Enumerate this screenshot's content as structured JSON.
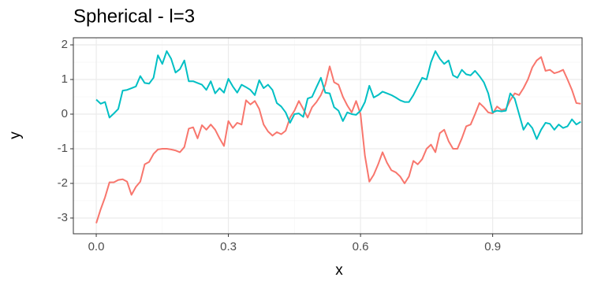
{
  "chart_data": {
    "type": "line",
    "title": "Spherical - l=3",
    "x_label": "x",
    "y_label": "y",
    "x": [
      0,
      0.01,
      0.02,
      0.03,
      0.04,
      0.05,
      0.06,
      0.07,
      0.08,
      0.09,
      0.1,
      0.11,
      0.12,
      0.13,
      0.14,
      0.15,
      0.16,
      0.17,
      0.18,
      0.19,
      0.2,
      0.21,
      0.22,
      0.23,
      0.24,
      0.25,
      0.26,
      0.27,
      0.28,
      0.29,
      0.3,
      0.31,
      0.32,
      0.33,
      0.34,
      0.35,
      0.36,
      0.37,
      0.38,
      0.39,
      0.4,
      0.41,
      0.42,
      0.43,
      0.44,
      0.45,
      0.46,
      0.47,
      0.48,
      0.49,
      0.5,
      0.51,
      0.52,
      0.53,
      0.54,
      0.55,
      0.56,
      0.57,
      0.58,
      0.59,
      0.6,
      0.61,
      0.62,
      0.63,
      0.64,
      0.65,
      0.66,
      0.67,
      0.68,
      0.69,
      0.7,
      0.71,
      0.72,
      0.73,
      0.74,
      0.75,
      0.76,
      0.77,
      0.78,
      0.79,
      0.8,
      0.81,
      0.82,
      0.83,
      0.84,
      0.85,
      0.86,
      0.87,
      0.88,
      0.89,
      0.9,
      0.91,
      0.92,
      0.93,
      0.94,
      0.95,
      0.96,
      0.97,
      0.98,
      0.99,
      1.0,
      1.01,
      1.02,
      1.03,
      1.04,
      1.05,
      1.06,
      1.07,
      1.08,
      1.09,
      1.1
    ],
    "series": [
      {
        "color": "#F8766D",
        "values": [
          -3.15,
          -2.75,
          -2.4,
          -1.97,
          -1.97,
          -1.9,
          -1.88,
          -1.95,
          -2.33,
          -2.1,
          -1.95,
          -1.45,
          -1.38,
          -1.15,
          -1.02,
          -1.0,
          -1.0,
          -1.02,
          -1.05,
          -1.1,
          -0.95,
          -0.42,
          -0.38,
          -0.7,
          -0.32,
          -0.45,
          -0.3,
          -0.45,
          -0.7,
          -0.92,
          -0.2,
          -0.4,
          -0.25,
          -0.3,
          0.4,
          0.28,
          0.38,
          0.15,
          -0.3,
          -0.5,
          -0.62,
          -0.52,
          -0.58,
          -0.48,
          -0.1,
          0.1,
          0.38,
          0.15,
          -0.1,
          0.2,
          0.35,
          0.55,
          0.85,
          1.38,
          0.92,
          0.85,
          0.5,
          0.25,
          0.05,
          0.38,
          0.0,
          -1.2,
          -1.95,
          -1.75,
          -1.45,
          -1.1,
          -1.4,
          -1.62,
          -1.68,
          -1.8,
          -2.0,
          -1.8,
          -1.35,
          -1.45,
          -1.3,
          -1.0,
          -0.88,
          -1.1,
          -0.55,
          -0.45,
          -0.78,
          -1.0,
          -1.0,
          -0.7,
          -0.35,
          -0.3,
          0.0,
          0.32,
          0.2,
          0.05,
          0.02,
          0.22,
          0.12,
          0.15,
          0.4,
          0.6,
          0.55,
          0.75,
          1.0,
          1.35,
          1.55,
          1.65,
          1.25,
          1.28,
          1.18,
          1.22,
          1.28,
          1.0,
          0.7,
          0.32,
          0.3
        ]
      },
      {
        "color": "#00BFC4",
        "values": [
          0.42,
          0.3,
          0.35,
          -0.1,
          0.02,
          0.15,
          0.68,
          0.7,
          0.75,
          0.8,
          1.1,
          0.9,
          0.88,
          1.05,
          1.7,
          1.45,
          1.82,
          1.6,
          1.2,
          1.3,
          1.55,
          0.95,
          0.95,
          0.9,
          0.85,
          0.7,
          0.95,
          0.6,
          0.75,
          0.62,
          1.02,
          0.8,
          0.62,
          0.85,
          0.78,
          0.7,
          0.55,
          0.98,
          0.75,
          0.85,
          0.7,
          0.32,
          0.22,
          0.05,
          -0.25,
          0.0,
          0.02,
          -0.08,
          0.45,
          0.5,
          0.78,
          1.05,
          0.62,
          0.6,
          0.2,
          0.1,
          -0.2,
          0.05,
          0.0,
          -0.02,
          0.1,
          0.35,
          0.82,
          0.48,
          0.55,
          0.65,
          0.6,
          0.55,
          0.48,
          0.4,
          0.35,
          0.35,
          0.55,
          0.8,
          1.05,
          1.0,
          1.5,
          1.82,
          1.6,
          1.45,
          1.55,
          1.12,
          1.05,
          1.28,
          1.15,
          1.12,
          1.25,
          1.1,
          0.92,
          0.6,
          0.05,
          0.1,
          0.08,
          0.1,
          0.6,
          0.45,
          0.0,
          -0.45,
          -0.25,
          -0.4,
          -0.72,
          -0.45,
          -0.25,
          -0.28,
          -0.45,
          -0.3,
          -0.4,
          -0.35,
          -0.15,
          -0.3,
          -0.22
        ]
      }
    ],
    "xlim": [
      -0.052,
      1.103
    ],
    "ylim": [
      -3.455,
      2.205
    ],
    "xticks": [
      {
        "value": 0,
        "label": "0.0"
      },
      0.3,
      0.6,
      0.9
    ],
    "yticks": [
      -3,
      -2,
      -1,
      0,
      1,
      2
    ],
    "grid": true
  }
}
